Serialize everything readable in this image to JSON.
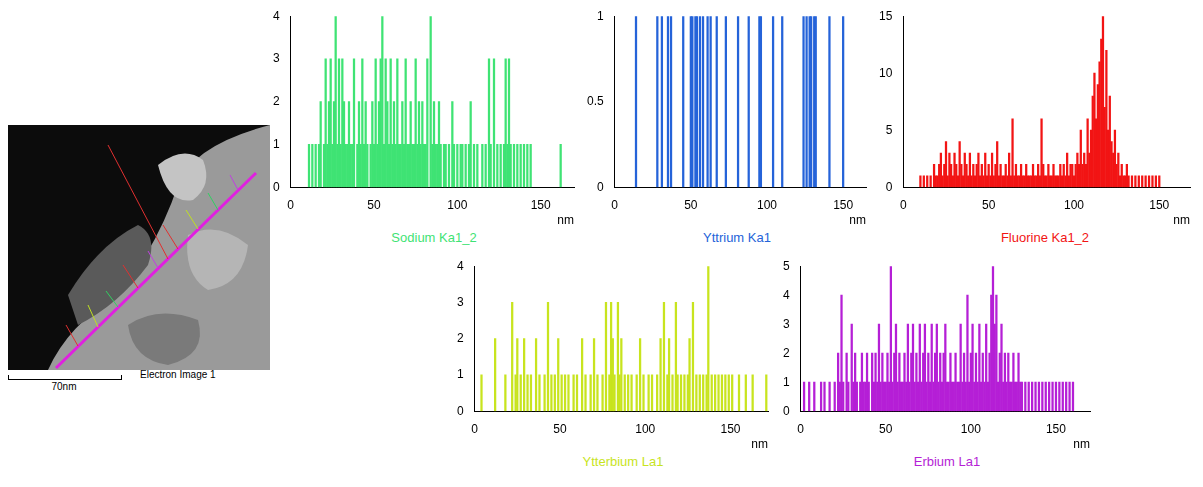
{
  "image": {
    "scale_bar": "70nm",
    "caption": "Electron Image 1"
  },
  "chart_data": [
    {
      "type": "bar",
      "title": "Sodium Ka1_2",
      "xlabel": "nm",
      "color": "#3fe374",
      "grid": false,
      "xlim": [
        0,
        170
      ],
      "xticks": [
        0,
        50,
        100,
        150
      ],
      "ylim": [
        0,
        4
      ],
      "yticks": [
        0,
        1,
        2,
        3,
        4
      ],
      "x": [
        11,
        13,
        15,
        17,
        18,
        20,
        21,
        22,
        23,
        24,
        25,
        26,
        27,
        28,
        29,
        30,
        31,
        32,
        33,
        34,
        35,
        36,
        37,
        38,
        40,
        41,
        42,
        43,
        44,
        45,
        46,
        48,
        49,
        50,
        51,
        52,
        53,
        54,
        55,
        56,
        57,
        58,
        59,
        60,
        61,
        62,
        63,
        64,
        65,
        66,
        67,
        68,
        69,
        70,
        71,
        72,
        73,
        74,
        75,
        76,
        77,
        78,
        79,
        80,
        81,
        82,
        84,
        85,
        86,
        87,
        88,
        89,
        90,
        92,
        93,
        95,
        97,
        98,
        100,
        102,
        103,
        105,
        107,
        108,
        110,
        112,
        115,
        117,
        119,
        120,
        122,
        124,
        126,
        128,
        129,
        130,
        131,
        132,
        134,
        136,
        138,
        140,
        142,
        144,
        162
      ],
      "values": [
        1,
        1,
        1,
        1,
        2,
        1,
        3,
        1,
        2,
        3,
        1,
        2,
        4,
        1,
        3,
        1,
        3,
        2,
        1,
        1,
        2,
        1,
        1,
        3,
        1,
        2,
        1,
        3,
        1,
        2,
        1,
        1,
        2,
        1,
        3,
        1,
        2,
        3,
        4,
        1,
        3,
        2,
        1,
        3,
        1,
        2,
        1,
        3,
        1,
        1,
        2,
        1,
        3,
        1,
        1,
        2,
        1,
        1,
        3,
        1,
        2,
        1,
        2,
        1,
        1,
        3,
        4,
        1,
        2,
        1,
        1,
        2,
        1,
        1,
        1,
        1,
        2,
        1,
        1,
        1,
        1,
        1,
        1,
        2,
        1,
        1,
        1,
        1,
        3,
        1,
        3,
        1,
        1,
        1,
        3,
        1,
        3,
        1,
        1,
        1,
        1,
        1,
        1,
        1,
        1
      ]
    },
    {
      "type": "bar",
      "title": "Yttrium Ka1",
      "xlabel": "nm",
      "color": "#2563d9",
      "grid": false,
      "xlim": [
        0,
        165
      ],
      "xticks": [
        0,
        50,
        100,
        150
      ],
      "ylim": [
        0,
        1
      ],
      "yticks": [
        0,
        0.5,
        1
      ],
      "x": [
        14,
        28,
        31,
        35,
        37,
        45,
        50,
        51,
        53,
        54,
        56,
        58,
        61,
        63,
        67,
        73,
        81,
        88,
        95,
        96,
        104,
        110,
        124,
        126,
        128,
        129,
        131,
        132,
        141,
        150
      ],
      "values": [
        1,
        1,
        1,
        1,
        1,
        1,
        1,
        1,
        1,
        1,
        1,
        1,
        1,
        1,
        1,
        1,
        1,
        1,
        1,
        1,
        1,
        1,
        1,
        1,
        1,
        1,
        1,
        1,
        1,
        1
      ]
    },
    {
      "type": "bar",
      "title": "Fluorine Ka1_2",
      "xlabel": "nm",
      "color": "#f21414",
      "grid": false,
      "xlim": [
        0,
        168
      ],
      "xticks": [
        0,
        50,
        100,
        150
      ],
      "ylim": [
        0,
        15
      ],
      "yticks": [
        0,
        5,
        10,
        15
      ],
      "x": [
        10,
        12,
        14,
        16,
        18,
        19,
        20,
        21,
        22,
        23,
        24,
        25,
        26,
        27,
        28,
        29,
        30,
        31,
        32,
        33,
        34,
        35,
        36,
        37,
        38,
        39,
        40,
        41,
        42,
        43,
        44,
        45,
        46,
        47,
        48,
        49,
        50,
        51,
        52,
        53,
        54,
        55,
        56,
        57,
        58,
        59,
        60,
        61,
        62,
        63,
        64,
        65,
        66,
        67,
        68,
        69,
        70,
        71,
        72,
        73,
        74,
        75,
        76,
        77,
        78,
        79,
        80,
        81,
        82,
        83,
        84,
        85,
        86,
        87,
        88,
        89,
        90,
        91,
        92,
        93,
        94,
        95,
        96,
        97,
        98,
        99,
        100,
        101,
        102,
        103,
        104,
        105,
        106,
        107,
        108,
        109,
        110,
        111,
        112,
        113,
        114,
        115,
        116,
        117,
        118,
        119,
        120,
        121,
        122,
        123,
        124,
        125,
        126,
        127,
        128,
        129,
        130,
        131,
        132,
        134,
        136,
        138,
        140,
        142,
        144,
        146,
        148,
        150
      ],
      "values": [
        1,
        1,
        1,
        1,
        2,
        1,
        1,
        2,
        3,
        1,
        2,
        4,
        1,
        3,
        2,
        1,
        3,
        2,
        1,
        4,
        2,
        1,
        3,
        2,
        1,
        3,
        1,
        2,
        1,
        2,
        3,
        1,
        2,
        1,
        3,
        1,
        2,
        1,
        3,
        1,
        2,
        4,
        1,
        2,
        1,
        1,
        2,
        1,
        3,
        1,
        6,
        1,
        2,
        1,
        1,
        2,
        1,
        1,
        2,
        1,
        1,
        1,
        2,
        1,
        1,
        2,
        1,
        6,
        2,
        1,
        1,
        2,
        1,
        1,
        2,
        1,
        1,
        1,
        2,
        1,
        2,
        1,
        3,
        1,
        2,
        2,
        1,
        2,
        3,
        2,
        5,
        2,
        3,
        2,
        6,
        3,
        5,
        8,
        10,
        6,
        9,
        11,
        13,
        15,
        7,
        12,
        5,
        8,
        4,
        3,
        5,
        2,
        3,
        1,
        2,
        1,
        1,
        2,
        1,
        1,
        1,
        1,
        1,
        1,
        1,
        1,
        1,
        1
      ]
    },
    {
      "type": "bar",
      "title": "Ytterbium La1",
      "xlabel": "nm",
      "color": "#c8e41e",
      "grid": false,
      "xlim": [
        0,
        172
      ],
      "xticks": [
        0,
        50,
        100,
        150
      ],
      "ylim": [
        0,
        4
      ],
      "yticks": [
        0,
        1,
        2,
        3,
        4
      ],
      "x": [
        4,
        12,
        18,
        22,
        24,
        25,
        27,
        29,
        31,
        33,
        36,
        38,
        41,
        43,
        45,
        47,
        49,
        51,
        53,
        55,
        58,
        60,
        63,
        65,
        68,
        70,
        72,
        75,
        77,
        79,
        80,
        81,
        82,
        84,
        85,
        86,
        88,
        90,
        92,
        95,
        97,
        99,
        102,
        104,
        107,
        109,
        111,
        113,
        114,
        116,
        118,
        119,
        121,
        123,
        125,
        126,
        128,
        130,
        132,
        134,
        136,
        137,
        139,
        141,
        143,
        145,
        147,
        149,
        151,
        155,
        159,
        163,
        171
      ],
      "values": [
        1,
        2,
        1,
        3,
        1,
        2,
        1,
        2,
        1,
        1,
        2,
        1,
        1,
        3,
        1,
        1,
        2,
        1,
        1,
        1,
        1,
        1,
        2,
        1,
        1,
        2,
        1,
        1,
        3,
        1,
        3,
        2,
        1,
        3,
        1,
        2,
        1,
        1,
        1,
        1,
        2,
        1,
        1,
        1,
        1,
        2,
        3,
        1,
        2,
        1,
        3,
        1,
        1,
        1,
        1,
        2,
        3,
        1,
        1,
        1,
        1,
        4,
        1,
        1,
        1,
        1,
        1,
        1,
        1,
        1,
        1,
        1,
        1
      ]
    },
    {
      "type": "bar",
      "title": "Erbium La1",
      "xlabel": "nm",
      "color": "#b51fd6",
      "grid": false,
      "xlim": [
        0,
        170
      ],
      "xticks": [
        0,
        50,
        100,
        150
      ],
      "ylim": [
        0,
        5
      ],
      "yticks": [
        0,
        1,
        2,
        3,
        4,
        5
      ],
      "x": [
        2,
        5,
        8,
        12,
        14,
        17,
        20,
        22,
        23,
        24,
        25,
        27,
        28,
        30,
        31,
        32,
        33,
        35,
        36,
        37,
        38,
        39,
        40,
        42,
        43,
        44,
        45,
        46,
        47,
        48,
        49,
        50,
        51,
        52,
        53,
        54,
        55,
        56,
        57,
        58,
        59,
        60,
        61,
        62,
        63,
        64,
        65,
        66,
        67,
        68,
        69,
        70,
        71,
        72,
        73,
        74,
        75,
        76,
        77,
        78,
        79,
        80,
        81,
        82,
        83,
        84,
        85,
        86,
        87,
        88,
        89,
        90,
        91,
        92,
        93,
        94,
        95,
        96,
        97,
        98,
        99,
        100,
        101,
        102,
        103,
        104,
        105,
        106,
        107,
        108,
        109,
        110,
        111,
        112,
        113,
        114,
        115,
        116,
        117,
        118,
        119,
        120,
        121,
        122,
        123,
        124,
        125,
        126,
        127,
        128,
        129,
        130,
        132,
        134,
        136,
        138,
        140,
        142,
        144,
        146,
        148,
        150,
        152,
        154,
        156,
        158,
        160
      ],
      "values": [
        1,
        1,
        1,
        1,
        1,
        1,
        1,
        2,
        1,
        4,
        1,
        2,
        1,
        3,
        1,
        2,
        1,
        1,
        2,
        1,
        1,
        2,
        1,
        2,
        1,
        2,
        1,
        3,
        1,
        2,
        1,
        1,
        2,
        1,
        5,
        1,
        2,
        3,
        1,
        2,
        1,
        1,
        2,
        1,
        3,
        1,
        2,
        3,
        1,
        2,
        1,
        3,
        1,
        2,
        3,
        1,
        2,
        1,
        3,
        1,
        2,
        3,
        1,
        2,
        1,
        2,
        3,
        1,
        1,
        2,
        1,
        1,
        2,
        1,
        1,
        3,
        1,
        2,
        1,
        4,
        1,
        2,
        3,
        1,
        2,
        1,
        3,
        1,
        2,
        1,
        3,
        1,
        2,
        4,
        5,
        3,
        4,
        1,
        2,
        3,
        1,
        2,
        1,
        2,
        1,
        1,
        2,
        1,
        1,
        2,
        1,
        1,
        1,
        1,
        1,
        1,
        1,
        1,
        1,
        1,
        1,
        1,
        1,
        1,
        1,
        1,
        1
      ]
    }
  ]
}
